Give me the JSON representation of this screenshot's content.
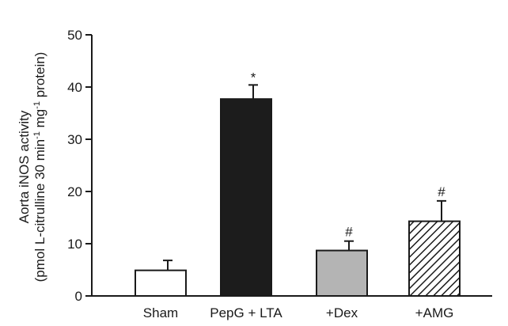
{
  "chart_data": {
    "type": "bar",
    "title": "",
    "xlabel": "",
    "ylabel": [
      "Aorta iNOS activity",
      "(pmol L-citrulline 30 min",
      "-1",
      " mg",
      "-1",
      " protein)"
    ],
    "ylim": [
      0,
      50
    ],
    "yticks": [
      0,
      10,
      20,
      30,
      40,
      50
    ],
    "categories": [
      "Sham",
      "PepG + LTA",
      "+Dex",
      "+AMG"
    ],
    "values": [
      4.9,
      37.7,
      8.7,
      14.3
    ],
    "errors": [
      1.9,
      2.7,
      1.8,
      3.9
    ],
    "annotations": [
      "",
      "*",
      "#",
      "#"
    ],
    "bar_fills": [
      "white",
      "black",
      "gray",
      "hatched"
    ],
    "colors": {
      "black_bar": "#1c1c1c",
      "gray_bar": "#b4b4b4",
      "axis": "#1a1a1a"
    }
  }
}
